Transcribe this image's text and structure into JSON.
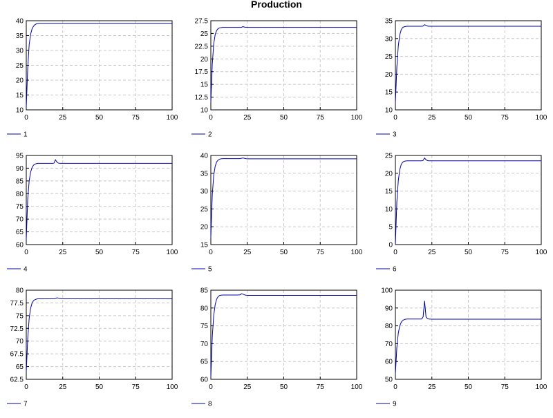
{
  "title": "Production",
  "colors": {
    "series": "#0000aa",
    "grid": "#c8c8c8",
    "axis": "#000000"
  },
  "chart_data": [
    {
      "type": "line",
      "legend": "1",
      "xlim": [
        0,
        100
      ],
      "ylim": [
        10,
        40
      ],
      "xticks": [
        "0",
        "25",
        "50",
        "75",
        "100"
      ],
      "yticks": [
        "10",
        "15",
        "20",
        "25",
        "30",
        "35",
        "40"
      ],
      "series": [
        {
          "x": [
            0,
            1,
            2,
            3,
            4,
            5,
            6,
            7,
            8,
            9,
            10,
            12,
            15,
            18,
            20,
            21,
            22,
            23,
            25,
            30,
            40,
            50,
            60,
            70,
            80,
            90,
            100
          ],
          "y": [
            11,
            24,
            32,
            35.5,
            37.3,
            38.2,
            38.7,
            38.95,
            39.05,
            39.1,
            39.1,
            39.1,
            39.1,
            39.1,
            39.1,
            39.1,
            39.1,
            39.1,
            39.1,
            39.1,
            39.1,
            39.1,
            39.1,
            39.1,
            39.1,
            39.1,
            39.1
          ]
        }
      ]
    },
    {
      "type": "line",
      "legend": "2",
      "xlim": [
        0,
        100
      ],
      "ylim": [
        10,
        27.5
      ],
      "xticks": [
        "0",
        "25",
        "50",
        "75",
        "100"
      ],
      "yticks": [
        "10",
        "12.5",
        "15",
        "17.5",
        "20",
        "22.5",
        "25",
        "27.5"
      ],
      "series": [
        {
          "x": [
            0,
            1,
            2,
            3,
            4,
            5,
            6,
            7,
            8,
            10,
            12,
            15,
            18,
            20,
            21,
            22,
            23,
            25,
            30,
            40,
            50,
            60,
            70,
            80,
            90,
            100
          ],
          "y": [
            11.5,
            19,
            23,
            24.8,
            25.6,
            25.95,
            26.1,
            26.15,
            26.2,
            26.2,
            26.2,
            26.2,
            26.2,
            26.2,
            26.2,
            26.35,
            26.25,
            26.2,
            26.2,
            26.2,
            26.2,
            26.2,
            26.2,
            26.2,
            26.2,
            26.2
          ]
        }
      ]
    },
    {
      "type": "line",
      "legend": "3",
      "xlim": [
        0,
        100
      ],
      "ylim": [
        10,
        35
      ],
      "xticks": [
        "0",
        "25",
        "50",
        "75",
        "100"
      ],
      "yticks": [
        "10",
        "15",
        "20",
        "25",
        "30",
        "35"
      ],
      "series": [
        {
          "x": [
            0,
            1,
            2,
            3,
            4,
            5,
            6,
            7,
            8,
            10,
            12,
            15,
            18,
            19,
            20,
            21,
            22,
            23,
            25,
            30,
            40,
            50,
            60,
            70,
            80,
            90,
            100
          ],
          "y": [
            12,
            22,
            28,
            31,
            32.5,
            33.1,
            33.3,
            33.4,
            33.45,
            33.45,
            33.45,
            33.45,
            33.45,
            33.5,
            33.9,
            33.7,
            33.5,
            33.45,
            33.45,
            33.45,
            33.45,
            33.45,
            33.45,
            33.45,
            33.45,
            33.45,
            33.45
          ]
        }
      ]
    },
    {
      "type": "line",
      "legend": "4",
      "xlim": [
        0,
        100
      ],
      "ylim": [
        60,
        95
      ],
      "xticks": [
        "0",
        "25",
        "50",
        "75",
        "100"
      ],
      "yticks": [
        "60",
        "65",
        "70",
        "75",
        "80",
        "85",
        "90",
        "95"
      ],
      "series": [
        {
          "x": [
            0,
            1,
            2,
            3,
            4,
            5,
            6,
            7,
            8,
            10,
            12,
            15,
            18,
            19,
            20,
            21,
            22,
            23,
            25,
            30,
            40,
            50,
            60,
            70,
            80,
            90,
            100
          ],
          "y": [
            62,
            78,
            85,
            88.5,
            90.3,
            91.2,
            91.6,
            91.8,
            91.9,
            91.9,
            91.9,
            91.9,
            91.9,
            92,
            93.3,
            92.4,
            92,
            91.9,
            91.9,
            91.9,
            91.9,
            91.9,
            91.9,
            91.9,
            91.9,
            91.9,
            91.9
          ]
        }
      ]
    },
    {
      "type": "line",
      "legend": "5",
      "xlim": [
        0,
        100
      ],
      "ylim": [
        15,
        40
      ],
      "xticks": [
        "0",
        "25",
        "50",
        "75",
        "100"
      ],
      "yticks": [
        "15",
        "20",
        "25",
        "30",
        "35",
        "40"
      ],
      "series": [
        {
          "x": [
            0,
            1,
            2,
            3,
            4,
            5,
            6,
            7,
            8,
            10,
            12,
            15,
            18,
            20,
            21,
            22,
            23,
            24,
            25,
            30,
            40,
            50,
            60,
            70,
            80,
            90,
            100
          ],
          "y": [
            17,
            29,
            34.5,
            37,
            38.2,
            38.7,
            38.95,
            39.05,
            39.1,
            39.1,
            39.1,
            39.1,
            39.1,
            39.1,
            39.2,
            39.3,
            39.2,
            39.1,
            39.05,
            39.05,
            39.05,
            39.05,
            39.05,
            39.05,
            39.05,
            39.05,
            39.05
          ]
        }
      ]
    },
    {
      "type": "line",
      "legend": "6",
      "xlim": [
        0,
        100
      ],
      "ylim": [
        0,
        25
      ],
      "xticks": [
        "0",
        "25",
        "50",
        "75",
        "100"
      ],
      "yticks": [
        "0",
        "5",
        "10",
        "15",
        "20",
        "25"
      ],
      "series": [
        {
          "x": [
            0,
            1,
            2,
            3,
            4,
            5,
            6,
            7,
            8,
            10,
            12,
            15,
            18,
            19,
            20,
            21,
            22,
            23,
            25,
            30,
            40,
            50,
            60,
            70,
            80,
            90,
            100
          ],
          "y": [
            0,
            12,
            18,
            21,
            22.5,
            23.1,
            23.35,
            23.45,
            23.5,
            23.5,
            23.5,
            23.5,
            23.5,
            23.6,
            24.3,
            23.8,
            23.55,
            23.5,
            23.5,
            23.5,
            23.5,
            23.5,
            23.5,
            23.5,
            23.5,
            23.5,
            23.5
          ]
        }
      ]
    },
    {
      "type": "line",
      "legend": "7",
      "xlim": [
        0,
        100
      ],
      "ylim": [
        62.5,
        80
      ],
      "xticks": [
        "0",
        "25",
        "50",
        "75",
        "100"
      ],
      "yticks": [
        "62.5",
        "65",
        "67.5",
        "70",
        "72.5",
        "75",
        "77.5",
        "80"
      ],
      "series": [
        {
          "x": [
            0,
            1,
            2,
            3,
            4,
            5,
            6,
            7,
            8,
            10,
            12,
            15,
            18,
            20,
            21,
            22,
            23,
            24,
            25,
            30,
            40,
            50,
            60,
            70,
            80,
            90,
            100
          ],
          "y": [
            64,
            70.5,
            74.5,
            76.5,
            77.5,
            77.95,
            78.15,
            78.25,
            78.3,
            78.3,
            78.3,
            78.3,
            78.3,
            78.35,
            78.5,
            78.45,
            78.35,
            78.3,
            78.3,
            78.3,
            78.3,
            78.3,
            78.3,
            78.3,
            78.3,
            78.3,
            78.3
          ]
        }
      ]
    },
    {
      "type": "line",
      "legend": "8",
      "xlim": [
        0,
        100
      ],
      "ylim": [
        60,
        85
      ],
      "xticks": [
        "0",
        "25",
        "50",
        "75",
        "100"
      ],
      "yticks": [
        "60",
        "65",
        "70",
        "75",
        "80",
        "85"
      ],
      "series": [
        {
          "x": [
            0,
            1,
            2,
            3,
            4,
            5,
            6,
            7,
            8,
            10,
            12,
            15,
            18,
            20,
            21,
            22,
            23,
            24,
            25,
            30,
            40,
            50,
            60,
            70,
            80,
            90,
            100
          ],
          "y": [
            60.5,
            72,
            78,
            81,
            82.5,
            83.2,
            83.5,
            83.6,
            83.65,
            83.65,
            83.65,
            83.65,
            83.65,
            83.7,
            84,
            83.9,
            83.7,
            83.6,
            83.55,
            83.55,
            83.55,
            83.55,
            83.55,
            83.55,
            83.55,
            83.55,
            83.55
          ]
        }
      ]
    },
    {
      "type": "line",
      "legend": "9",
      "xlim": [
        0,
        100
      ],
      "ylim": [
        50,
        100
      ],
      "xticks": [
        "0",
        "25",
        "50",
        "75",
        "100"
      ],
      "yticks": [
        "50",
        "60",
        "70",
        "80",
        "90",
        "100"
      ],
      "series": [
        {
          "x": [
            0,
            1,
            2,
            3,
            4,
            5,
            6,
            7,
            8,
            10,
            12,
            15,
            18,
            19,
            20,
            21,
            22,
            23,
            25,
            30,
            40,
            50,
            60,
            70,
            80,
            90,
            100
          ],
          "y": [
            53,
            68,
            76,
            80,
            82,
            83,
            83.5,
            83.7,
            83.8,
            83.8,
            83.8,
            83.8,
            83.8,
            85,
            94,
            85,
            84,
            83.8,
            83.7,
            83.7,
            83.7,
            83.7,
            83.7,
            83.7,
            83.7,
            83.7,
            83.7
          ]
        }
      ]
    }
  ]
}
